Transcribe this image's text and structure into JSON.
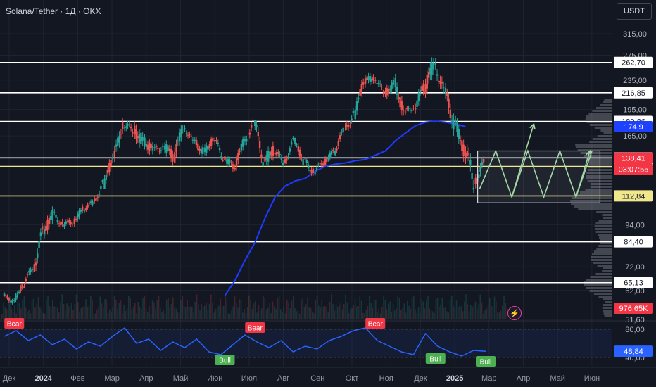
{
  "header": {
    "title": "Solana/Tether · 1Д · OKX",
    "currency": "USDT"
  },
  "chart_data": {
    "type": "candlestick",
    "price_axis": {
      "ticks": [
        "315,00",
        "275,00",
        "235,00",
        "195,00",
        "165,00",
        "94,00",
        "72,00",
        "62,00",
        "51,60"
      ],
      "min": 51.6,
      "max": 315
    },
    "time_axis": {
      "ticks": [
        "Дек",
        "2024",
        "Фев",
        "Мар",
        "Апр",
        "Май",
        "Июн",
        "Июл",
        "Авг",
        "Сен",
        "Окт",
        "Ноя",
        "Дек",
        "2025",
        "Мар",
        "Апр",
        "Май",
        "Июн"
      ],
      "bold": [
        "2024",
        "2025"
      ]
    },
    "horizontal_levels": [
      {
        "value": "262,70",
        "color": "#ffffff"
      },
      {
        "value": "216,85",
        "color": "#ffffff"
      },
      {
        "value": "180,86",
        "color": "#ffffff"
      },
      {
        "value": "143,62",
        "color": "#ffffff"
      },
      {
        "value": "135,99",
        "color": "#f0e68c"
      },
      {
        "value": "112,84",
        "color": "#f0e68c"
      },
      {
        "value": "84,40",
        "color": "#ffffff"
      },
      {
        "value": "65,13",
        "color": "#ffffff"
      }
    ],
    "price_badges": [
      {
        "text": "174,9",
        "bg": "#1e40ff",
        "fg": "#ffffff"
      },
      {
        "text": "138,41",
        "bg": "#f23645",
        "fg": "#ffffff"
      },
      {
        "text": "03:07:55",
        "bg": "#f23645",
        "fg": "#ffffff"
      },
      {
        "text": "976,65K",
        "bg": "#f23645",
        "fg": "#ffffff"
      }
    ],
    "ma_color": "#1e3aff",
    "ma_points": [
      [
        11,
        60
      ],
      [
        11.5,
        66
      ],
      [
        12,
        75
      ],
      [
        12.5,
        84
      ],
      [
        13,
        98
      ],
      [
        13.5,
        112
      ],
      [
        14,
        120
      ],
      [
        14.5,
        124
      ],
      [
        15,
        126
      ],
      [
        15.5,
        132
      ],
      [
        16,
        136
      ],
      [
        16.5,
        138
      ],
      [
        17,
        139
      ],
      [
        17.5,
        141
      ],
      [
        18,
        142
      ],
      [
        18.5,
        146
      ],
      [
        19,
        150
      ],
      [
        19.5,
        160
      ],
      [
        20,
        168
      ],
      [
        20.5,
        176
      ],
      [
        21,
        180
      ],
      [
        21.5,
        181
      ],
      [
        22,
        180
      ],
      [
        22.5,
        178
      ],
      [
        23,
        174.9
      ]
    ],
    "candles": [
      [
        0,
        60,
        62,
        56,
        58
      ],
      [
        0.5,
        58,
        65,
        57,
        64
      ],
      [
        1,
        64,
        75,
        63,
        72
      ],
      [
        1.5,
        72,
        95,
        70,
        90
      ],
      [
        2,
        90,
        110,
        85,
        100
      ],
      [
        2.5,
        100,
        105,
        88,
        94
      ],
      [
        3,
        94,
        100,
        86,
        96
      ],
      [
        3.5,
        96,
        108,
        92,
        104
      ],
      [
        4,
        104,
        112,
        98,
        108
      ],
      [
        4.5,
        108,
        125,
        104,
        122
      ],
      [
        5,
        122,
        150,
        118,
        144
      ],
      [
        5.5,
        144,
        190,
        140,
        178
      ],
      [
        6,
        178,
        195,
        160,
        170
      ],
      [
        6.5,
        170,
        200,
        150,
        160
      ],
      [
        7,
        160,
        180,
        140,
        150
      ],
      [
        7.5,
        150,
        165,
        135,
        155
      ],
      [
        8,
        155,
        168,
        130,
        145
      ],
      [
        8.5,
        145,
        185,
        140,
        175
      ],
      [
        9,
        175,
        182,
        150,
        158
      ],
      [
        9.5,
        158,
        168,
        135,
        150
      ],
      [
        10,
        150,
        170,
        140,
        160
      ],
      [
        10.5,
        160,
        172,
        140,
        145
      ],
      [
        11,
        145,
        150,
        125,
        135
      ],
      [
        11.5,
        135,
        165,
        132,
        158
      ],
      [
        12,
        158,
        185,
        150,
        178
      ],
      [
        12.5,
        178,
        182,
        135,
        142
      ],
      [
        13,
        142,
        160,
        120,
        150
      ],
      [
        13.5,
        150,
        160,
        135,
        140
      ],
      [
        14,
        140,
        165,
        138,
        160
      ],
      [
        14.5,
        160,
        158,
        130,
        140
      ],
      [
        15,
        140,
        150,
        125,
        132
      ],
      [
        15.5,
        132,
        148,
        128,
        140
      ],
      [
        16,
        140,
        158,
        136,
        150
      ],
      [
        16.5,
        150,
        175,
        145,
        170
      ],
      [
        17,
        170,
        200,
        160,
        190
      ],
      [
        17.5,
        190,
        240,
        185,
        232
      ],
      [
        18,
        232,
        262,
        215,
        240
      ],
      [
        18.5,
        240,
        250,
        205,
        215
      ],
      [
        19,
        215,
        240,
        195,
        230
      ],
      [
        19.5,
        230,
        245,
        180,
        190
      ],
      [
        20,
        190,
        210,
        175,
        200
      ],
      [
        20.5,
        200,
        240,
        185,
        225
      ],
      [
        21,
        225,
        295,
        210,
        260
      ],
      [
        21.5,
        260,
        280,
        200,
        215
      ],
      [
        22,
        215,
        235,
        165,
        180
      ],
      [
        22.5,
        180,
        190,
        140,
        150
      ],
      [
        23,
        150,
        175,
        115,
        125
      ],
      [
        23.5,
        125,
        145,
        112,
        138.41
      ]
    ],
    "forecast_box": {
      "top": 150,
      "bottom": 108
    },
    "forecast_path": [
      [
        23.7,
        118
      ],
      [
        24.5,
        150
      ],
      [
        25.3,
        112
      ],
      [
        26.1,
        150
      ],
      [
        26.9,
        112
      ],
      [
        27.7,
        150
      ],
      [
        28.5,
        112
      ],
      [
        29.3,
        150
      ]
    ],
    "forecast_arrow_a": [
      [
        25.3,
        112
      ],
      [
        26.4,
        178
      ]
    ],
    "forecast_arrow_b": [
      [
        28.5,
        112
      ],
      [
        29.2,
        150
      ]
    ],
    "forecast_color": "#a5d6a7",
    "rsi": {
      "ticks": [
        "80,00",
        "40,00"
      ],
      "value": "48,84",
      "upper": 80,
      "lower": 40,
      "min": 30,
      "max": 90,
      "points": [
        [
          0,
          70
        ],
        [
          0.6,
          78
        ],
        [
          1.2,
          64
        ],
        [
          1.8,
          72
        ],
        [
          2.4,
          58
        ],
        [
          3,
          66
        ],
        [
          3.6,
          52
        ],
        [
          4.2,
          62
        ],
        [
          4.8,
          56
        ],
        [
          5.4,
          70
        ],
        [
          6,
          82
        ],
        [
          6.6,
          60
        ],
        [
          7.2,
          66
        ],
        [
          7.8,
          50
        ],
        [
          8.4,
          62
        ],
        [
          9,
          54
        ],
        [
          9.6,
          66
        ],
        [
          10.2,
          48
        ],
        [
          10.8,
          44
        ],
        [
          11.4,
          58
        ],
        [
          12,
          72
        ],
        [
          12.6,
          62
        ],
        [
          13.2,
          54
        ],
        [
          13.8,
          64
        ],
        [
          14.4,
          48
        ],
        [
          15,
          56
        ],
        [
          15.6,
          52
        ],
        [
          16.2,
          64
        ],
        [
          16.8,
          70
        ],
        [
          17.4,
          78
        ],
        [
          18,
          82
        ],
        [
          18.6,
          64
        ],
        [
          19.2,
          56
        ],
        [
          19.8,
          48
        ],
        [
          20.4,
          44
        ],
        [
          21,
          74
        ],
        [
          21.6,
          56
        ],
        [
          22.2,
          48
        ],
        [
          22.8,
          42
        ],
        [
          23.4,
          50
        ],
        [
          24,
          48.84
        ]
      ],
      "labels": [
        {
          "text": "Bear",
          "x": 0.5,
          "y": 88,
          "bg": "#f23645"
        },
        {
          "text": "Bear",
          "x": 12.5,
          "y": 82,
          "bg": "#f23645"
        },
        {
          "text": "Bear",
          "x": 18.5,
          "y": 88,
          "bg": "#f23645"
        },
        {
          "text": "Bull",
          "x": 11,
          "y": 36,
          "bg": "#4caf50"
        },
        {
          "text": "Bull",
          "x": 21.5,
          "y": 38,
          "bg": "#4caf50"
        },
        {
          "text": "Bull",
          "x": 24,
          "y": 34,
          "bg": "#4caf50"
        }
      ]
    }
  }
}
